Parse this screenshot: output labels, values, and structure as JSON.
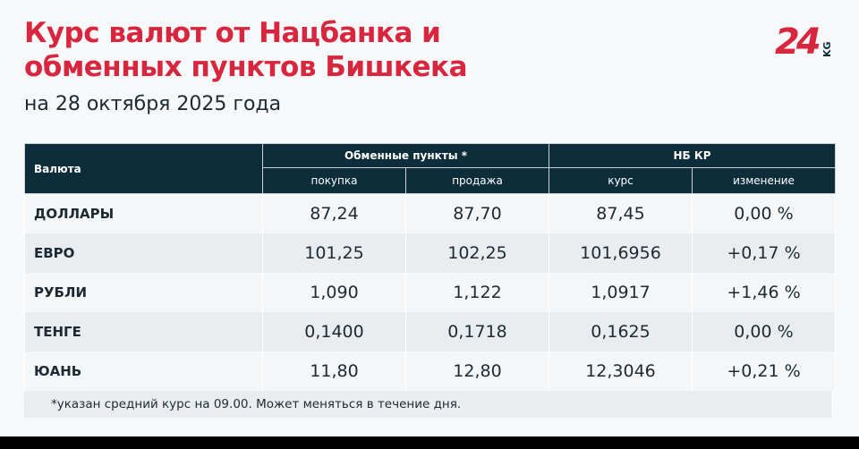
{
  "title_line1": "Курс валют от Нацбанка и",
  "title_line2": "обменных пунктов Бишкека",
  "subtitle": "на 28 октября 2025 года",
  "logo": "24 KG",
  "colors": {
    "accent": "#d7263d",
    "header": "#0d2d3b"
  },
  "table": {
    "col_currency": "Валюта",
    "group_exchange": "Обменные пункты *",
    "group_nb": "НБ КР",
    "buy": "покупка",
    "sell": "продажа",
    "rate": "курс",
    "change": "изменение",
    "rows": [
      {
        "name": "ДОЛЛАРЫ",
        "buy": "87,24",
        "sell": "87,70",
        "rate": "87,45",
        "change": "0,00 %"
      },
      {
        "name": "ЕВРО",
        "buy": "101,25",
        "sell": "102,25",
        "rate": "101,6956",
        "change": "+0,17 %"
      },
      {
        "name": "РУБЛИ",
        "buy": "1,090",
        "sell": "1,122",
        "rate": "1,0917",
        "change": "+1,46 %"
      },
      {
        "name": "ТЕНГЕ",
        "buy": "0,1400",
        "sell": "0,1718",
        "rate": "0,1625",
        "change": "0,00 %"
      },
      {
        "name": "ЮАНЬ",
        "buy": "11,80",
        "sell": "12,80",
        "rate": "12,3046",
        "change": "+0,21 %"
      }
    ]
  },
  "note": "*указан средний курс на 09.00. Может меняться в течение дня."
}
